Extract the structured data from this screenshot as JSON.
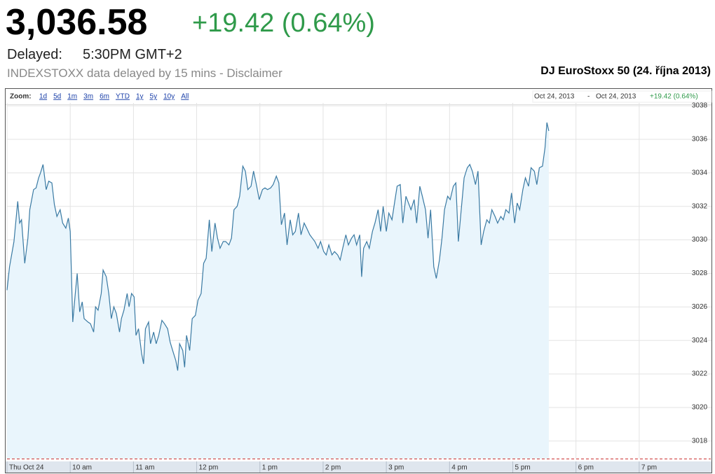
{
  "header": {
    "price": "3,036.58",
    "change": "+19.42 (0.64%)",
    "delayed_label": "Delayed:",
    "delayed_time": "5:30PM GMT+2",
    "disclaimer": "INDEXSTOXX data delayed by 15 mins - Disclaimer"
  },
  "toolbar": {
    "zoom_label": "Zoom:",
    "zoom_options": [
      "1d",
      "5d",
      "1m",
      "3m",
      "6m",
      "YTD",
      "1y",
      "5y",
      "10y",
      "All"
    ],
    "range_start": "Oct 24, 2013",
    "range_separator": "-",
    "range_end": "Oct 24, 2013",
    "range_change": "+19.42 (0.64%)"
  },
  "chart_data": {
    "type": "line",
    "title": "DJ EuroStoxx 50 (24. října 2013)",
    "color": "#3a7aa3",
    "area_color": "#e9f5fc",
    "grid": true,
    "x": [
      9.0,
      9.04,
      9.11,
      9.17,
      9.2,
      9.23,
      9.28,
      9.33,
      9.36,
      9.42,
      9.46,
      9.5,
      9.53,
      9.57,
      9.62,
      9.66,
      9.71,
      9.75,
      9.79,
      9.84,
      9.88,
      9.93,
      9.97,
      10.0,
      10.04,
      10.08,
      10.11,
      10.15,
      10.19,
      10.22,
      10.28,
      10.32,
      10.37,
      10.4,
      10.44,
      10.49,
      10.52,
      10.57,
      10.61,
      10.65,
      10.69,
      10.73,
      10.78,
      10.81,
      10.85,
      10.9,
      10.93,
      10.97,
      11.01,
      11.04,
      11.08,
      11.13,
      11.16,
      11.19,
      11.24,
      11.27,
      11.32,
      11.36,
      11.4,
      11.45,
      11.49,
      11.54,
      11.58,
      11.62,
      11.67,
      11.7,
      11.73,
      11.78,
      11.81,
      11.84,
      11.89,
      11.93,
      11.98,
      12.02,
      12.07,
      12.11,
      12.15,
      12.2,
      12.24,
      12.29,
      12.33,
      12.37,
      12.42,
      12.46,
      12.51,
      12.55,
      12.59,
      12.64,
      12.68,
      12.73,
      12.77,
      12.81,
      12.86,
      12.9,
      12.95,
      12.99,
      13.04,
      13.08,
      13.12,
      13.17,
      13.21,
      13.26,
      13.3,
      13.34,
      13.39,
      13.43,
      13.48,
      13.52,
      13.56,
      13.61,
      13.65,
      13.7,
      13.74,
      13.79,
      13.83,
      13.87,
      13.92,
      13.96,
      14.01,
      14.05,
      14.09,
      14.14,
      14.18,
      14.23,
      14.27,
      14.31,
      14.36,
      14.4,
      14.45,
      14.49,
      14.53,
      14.58,
      14.61,
      14.64,
      14.69,
      14.73,
      14.78,
      14.82,
      14.87,
      14.91,
      14.95,
      15.0,
      15.04,
      15.09,
      15.13,
      15.17,
      15.22,
      15.26,
      15.31,
      15.35,
      15.39,
      15.44,
      15.48,
      15.53,
      15.57,
      15.62,
      15.66,
      15.7,
      15.75,
      15.79,
      15.84,
      15.88,
      15.92,
      15.97,
      16.01,
      16.06,
      16.1,
      16.14,
      16.19,
      16.23,
      16.28,
      16.32,
      16.36,
      16.41,
      16.45,
      16.5,
      16.54,
      16.59,
      16.63,
      16.67,
      16.72,
      16.76,
      16.81,
      16.85,
      16.89,
      16.94,
      16.98,
      17.03,
      17.07,
      17.11,
      17.16,
      17.2,
      17.25,
      17.29,
      17.34,
      17.38,
      17.42,
      17.47,
      17.51,
      17.54,
      17.57
    ],
    "values": [
      3027.0,
      3028.4,
      3029.9,
      3032.3,
      3031.0,
      3031.2,
      3028.6,
      3030.1,
      3031.8,
      3033.0,
      3033.1,
      3033.7,
      3034.0,
      3034.5,
      3033.0,
      3033.5,
      3033.4,
      3032.1,
      3031.4,
      3031.8,
      3031.0,
      3030.7,
      3031.3,
      3030.5,
      3025.1,
      3026.8,
      3028.0,
      3025.7,
      3026.3,
      3025.3,
      3025.1,
      3025.0,
      3024.5,
      3026.0,
      3025.8,
      3026.8,
      3028.2,
      3027.8,
      3026.8,
      3025.3,
      3026.0,
      3025.6,
      3024.5,
      3025.3,
      3025.8,
      3026.8,
      3026.0,
      3026.8,
      3026.6,
      3024.3,
      3024.7,
      3023.2,
      3022.6,
      3024.7,
      3025.1,
      3023.8,
      3024.5,
      3023.8,
      3024.3,
      3025.2,
      3025.0,
      3024.7,
      3023.9,
      3023.4,
      3022.8,
      3022.2,
      3023.8,
      3023.4,
      3022.4,
      3024.3,
      3023.4,
      3025.3,
      3025.5,
      3026.4,
      3026.8,
      3028.6,
      3028.9,
      3031.2,
      3029.3,
      3031.0,
      3030.1,
      3029.5,
      3029.9,
      3029.9,
      3029.7,
      3030.1,
      3031.8,
      3032.0,
      3032.6,
      3034.4,
      3034.1,
      3033.0,
      3033.2,
      3034.1,
      3033.2,
      3032.4,
      3033.0,
      3033.1,
      3033.0,
      3033.1,
      3033.3,
      3033.8,
      3033.4,
      3030.9,
      3031.6,
      3029.7,
      3031.2,
      3030.3,
      3030.5,
      3031.6,
      3030.3,
      3031.0,
      3030.7,
      3030.3,
      3030.1,
      3029.9,
      3029.5,
      3029.9,
      3029.3,
      3029.1,
      3029.7,
      3029.1,
      3029.3,
      3029.1,
      3028.8,
      3029.5,
      3030.3,
      3029.7,
      3030.1,
      3030.3,
      3029.7,
      3030.3,
      3027.8,
      3029.5,
      3029.9,
      3029.5,
      3030.5,
      3031.0,
      3031.8,
      3030.5,
      3032.0,
      3030.5,
      3031.6,
      3031.2,
      3032.2,
      3033.2,
      3033.3,
      3031.0,
      3032.6,
      3032.2,
      3031.8,
      3032.4,
      3031.0,
      3033.2,
      3032.6,
      3031.8,
      3030.1,
      3031.8,
      3028.4,
      3027.7,
      3028.8,
      3030.1,
      3031.8,
      3032.6,
      3032.4,
      3033.2,
      3033.4,
      3029.9,
      3032.0,
      3033.7,
      3034.3,
      3034.5,
      3034.1,
      3033.3,
      3034.1,
      3029.7,
      3030.5,
      3031.2,
      3031.0,
      3031.8,
      3031.4,
      3031.0,
      3031.4,
      3031.2,
      3031.8,
      3031.6,
      3032.8,
      3031.0,
      3032.2,
      3031.8,
      3033.0,
      3033.7,
      3033.2,
      3034.3,
      3034.1,
      3033.3,
      3034.3,
      3034.4,
      3035.5,
      3037.0,
      3036.5
    ],
    "xlim": [
      9,
      19.7
    ],
    "xticks": [
      {
        "value": 9,
        "label": "Thu Oct 24"
      },
      {
        "value": 10,
        "label": "10 am"
      },
      {
        "value": 11,
        "label": "11 am"
      },
      {
        "value": 12,
        "label": "12 pm"
      },
      {
        "value": 13,
        "label": "1 pm"
      },
      {
        "value": 14,
        "label": "2 pm"
      },
      {
        "value": 15,
        "label": "3 pm"
      },
      {
        "value": 16,
        "label": "4 pm"
      },
      {
        "value": 17,
        "label": "5 pm"
      },
      {
        "value": 18,
        "label": "6 pm"
      },
      {
        "value": 19,
        "label": "7 pm"
      }
    ],
    "ylim": [
      3016.95,
      3038.17
    ],
    "yticks": [
      3018,
      3020,
      3022,
      3024,
      3026,
      3028,
      3030,
      3032,
      3034,
      3036,
      3038
    ]
  }
}
